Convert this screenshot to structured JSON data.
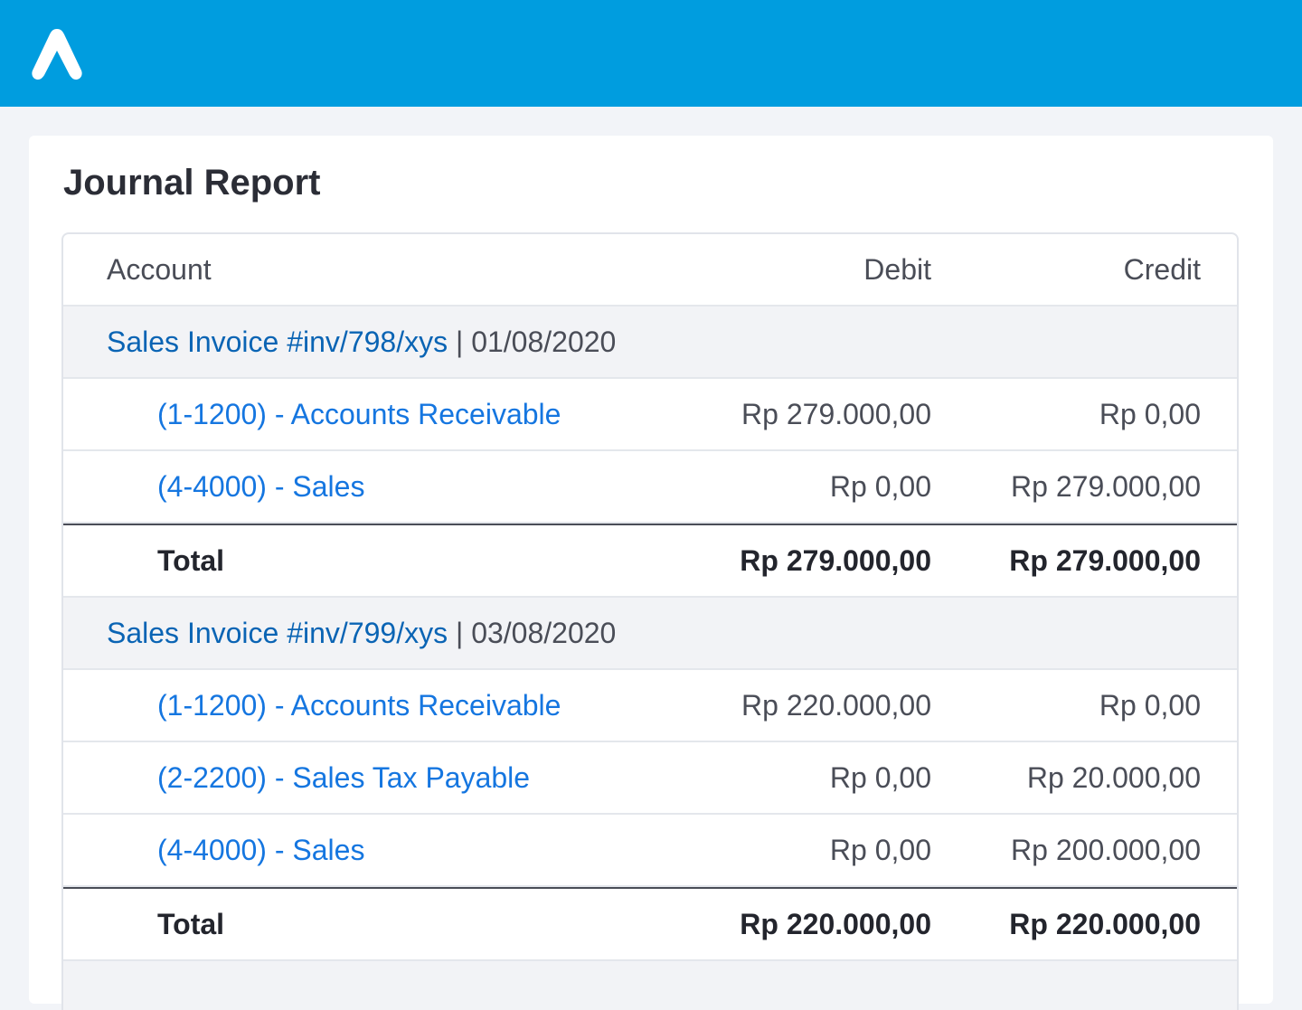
{
  "header": {
    "logo_icon": "app-logo-icon",
    "brand_color": "#009ddf"
  },
  "report": {
    "title": "Journal Report",
    "columns": {
      "account": "Account",
      "debit": "Debit",
      "credit": "Credit"
    },
    "groups": [
      {
        "invoice": "Sales Invoice #inv/798/xys",
        "separator": "|",
        "date": "01/08/2020",
        "lines": [
          {
            "account": "(1-1200) - Accounts Receivable",
            "debit": "Rp 279.000,00",
            "credit": "Rp 0,00"
          },
          {
            "account": "(4-4000) - Sales",
            "debit": "Rp 0,00",
            "credit": "Rp 279.000,00"
          }
        ],
        "total": {
          "label": "Total",
          "debit": "Rp 279.000,00",
          "credit": "Rp 279.000,00"
        }
      },
      {
        "invoice": "Sales Invoice #inv/799/xys",
        "separator": "|",
        "date": "03/08/2020",
        "lines": [
          {
            "account": "(1-1200) - Accounts Receivable",
            "debit": "Rp 220.000,00",
            "credit": "Rp 0,00"
          },
          {
            "account": "(2-2200) - Sales Tax Payable",
            "debit": "Rp 0,00",
            "credit": "Rp 20.000,00"
          },
          {
            "account": "(4-4000) - Sales",
            "debit": "Rp 0,00",
            "credit": "Rp 200.000,00"
          }
        ],
        "total": {
          "label": "Total",
          "debit": "Rp 220.000,00",
          "credit": "Rp 220.000,00"
        }
      }
    ]
  }
}
